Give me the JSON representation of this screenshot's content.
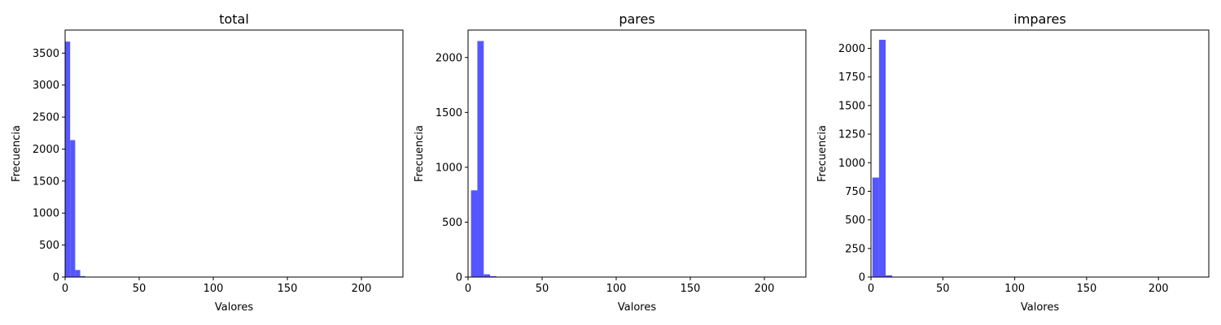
{
  "chart_data": [
    {
      "type": "bar",
      "title": "total",
      "xlabel": "Valores",
      "ylabel": "Frecuencia",
      "xlim": [
        0,
        228
      ],
      "ylim": [
        0,
        3860
      ],
      "x_ticks": [
        0,
        50,
        100,
        150,
        200
      ],
      "y_ticks": [
        0,
        500,
        1000,
        1500,
        2000,
        2500,
        3000,
        3500
      ],
      "color": "#4d4dff",
      "bins": [
        {
          "x0": 0,
          "x1": 3.4,
          "count": 3680
        },
        {
          "x0": 3.4,
          "x1": 6.8,
          "count": 2140
        },
        {
          "x0": 6.8,
          "x1": 10.2,
          "count": 110
        },
        {
          "x0": 10.2,
          "x1": 13.6,
          "count": 15
        }
      ]
    },
    {
      "type": "bar",
      "title": "pares",
      "xlabel": "Valores",
      "ylabel": "Frecuencia",
      "xlim": [
        0,
        228
      ],
      "ylim": [
        0,
        2250
      ],
      "x_ticks": [
        0,
        50,
        100,
        150,
        200
      ],
      "y_ticks": [
        0,
        500,
        1000,
        1500,
        2000
      ],
      "color": "#4d4dff",
      "bins": [
        {
          "x0": 2,
          "x1": 6.3,
          "count": 790
        },
        {
          "x0": 6.3,
          "x1": 10.6,
          "count": 2150
        },
        {
          "x0": 10.6,
          "x1": 14.9,
          "count": 25
        },
        {
          "x0": 14.9,
          "x1": 19.2,
          "count": 8
        }
      ]
    },
    {
      "type": "bar",
      "title": "impares",
      "xlabel": "Valores",
      "ylabel": "Frecuencia",
      "xlim": [
        0,
        235
      ],
      "ylim": [
        0,
        2160
      ],
      "x_ticks": [
        0,
        50,
        100,
        150,
        200
      ],
      "y_ticks": [
        0,
        250,
        500,
        750,
        1000,
        1250,
        1500,
        1750,
        2000
      ],
      "color": "#4d4dff",
      "bins": [
        {
          "x0": 1,
          "x1": 5.6,
          "count": 870
        },
        {
          "x0": 5.6,
          "x1": 10.2,
          "count": 2075
        },
        {
          "x0": 10.2,
          "x1": 14.8,
          "count": 15
        }
      ]
    }
  ]
}
